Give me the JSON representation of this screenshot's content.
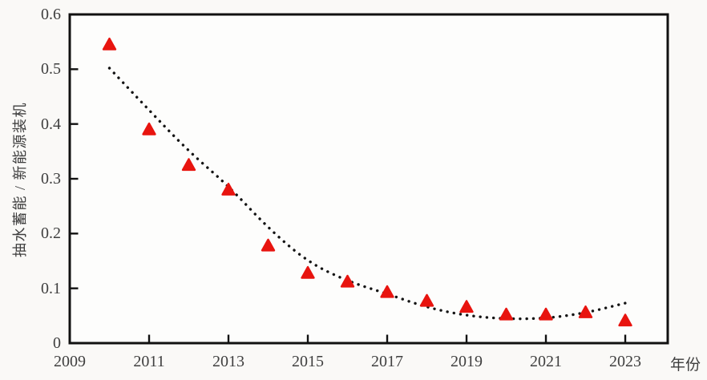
{
  "page": {
    "background": "#faf9f7",
    "plot_background": "#fdfdfc"
  },
  "chart_data": {
    "type": "scatter",
    "title": "",
    "xlabel": "年份",
    "ylabel": "抽水蓄能 / 新能源装机",
    "x_tick_labels": [
      "2009",
      "2011",
      "2013",
      "2015",
      "2017",
      "2019",
      "2021",
      "2023"
    ],
    "y_tick_labels": [
      "0",
      "0.1",
      "0.2",
      "0.3",
      "0.4",
      "0.5",
      "0.6"
    ],
    "xlim": [
      2009,
      2024.07
    ],
    "ylim": [
      0,
      0.6
    ],
    "grid": false,
    "legend": false,
    "frame_color": "#111111",
    "tick_color": "#111111",
    "tick_label_color": "#3f3f3f",
    "series": {
      "points": {
        "kind": "scatter",
        "marker": "triangle-up",
        "color": "#e8140f",
        "x": [
          2010,
          2011,
          2012,
          2013,
          2014,
          2015,
          2016,
          2017,
          2018,
          2019,
          2020,
          2021,
          2022,
          2023
        ],
        "y": [
          0.545,
          0.39,
          0.325,
          0.28,
          0.178,
          0.128,
          0.112,
          0.093,
          0.077,
          0.066,
          0.052,
          0.052,
          0.056,
          0.041
        ]
      },
      "trendline": {
        "kind": "dotted-curve",
        "color": "#141414",
        "x": [
          2010,
          2011,
          2012,
          2013,
          2014,
          2015,
          2016,
          2017,
          2018,
          2019,
          2020,
          2021,
          2022,
          2023
        ],
        "y": [
          0.502,
          0.425,
          0.35,
          0.287,
          0.21,
          0.148,
          0.113,
          0.09,
          0.065,
          0.05,
          0.044,
          0.045,
          0.055,
          0.073
        ]
      }
    }
  }
}
